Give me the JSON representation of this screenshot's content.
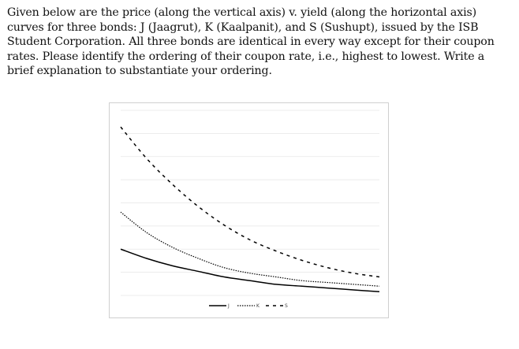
{
  "question": {
    "text": "Given below are the price (along the vertical axis) v. yield (along the horizontal axis) curves for three bonds: J (Jaagrut), K (Kaalpanit), and S (Sushupt), issued by the ISB Student Corporation. All three bonds are identical in every way except for their coupon rates. Please identify the ordering of their coupon rate, i.e., highest to lowest. Write a brief explanation to substantiate your ordering."
  },
  "chart_data": {
    "type": "line",
    "title": "",
    "xlabel": "",
    "ylabel": "",
    "axis_tick_labels_shown": false,
    "grid": true,
    "legend_position": "bottom",
    "x": [
      0,
      0.1,
      0.2,
      0.3,
      0.4,
      0.5,
      0.6,
      0.7,
      0.8,
      0.9,
      1.0
    ],
    "series": [
      {
        "name": "J",
        "style": "solid",
        "values": [
          0.25,
          0.2,
          0.16,
          0.13,
          0.1,
          0.08,
          0.06,
          0.05,
          0.04,
          0.03,
          0.02
        ]
      },
      {
        "name": "K",
        "style": "dotted",
        "values": [
          0.45,
          0.34,
          0.26,
          0.2,
          0.15,
          0.12,
          0.1,
          0.08,
          0.07,
          0.06,
          0.05
        ]
      },
      {
        "name": "S",
        "style": "dashed",
        "values": [
          0.91,
          0.74,
          0.6,
          0.48,
          0.38,
          0.3,
          0.24,
          0.19,
          0.15,
          0.12,
          0.1
        ]
      }
    ],
    "colors": {
      "lines": "#000000",
      "grid": "#e6e6e6",
      "border": "#cfcfcf"
    }
  }
}
